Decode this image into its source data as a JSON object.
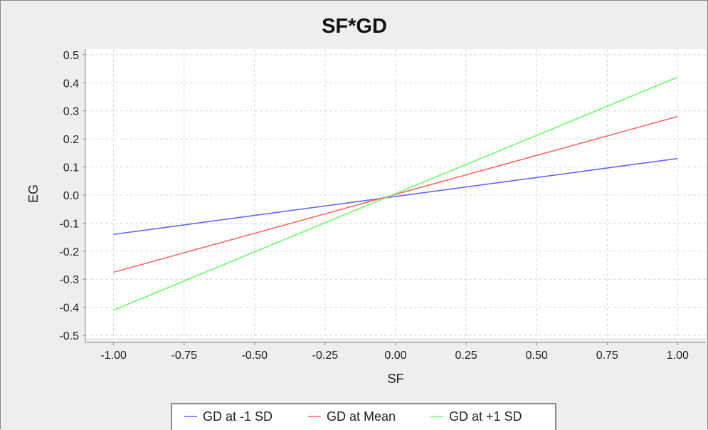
{
  "chart_data": {
    "type": "line",
    "title": "SF*GD",
    "xlabel": "SF",
    "ylabel": "EG",
    "xlim": [
      -1.1,
      1.1
    ],
    "ylim": [
      -0.51,
      0.52
    ],
    "x_ticks": [
      -1.0,
      -0.75,
      -0.5,
      -0.25,
      0.0,
      0.25,
      0.5,
      0.75,
      1.0
    ],
    "x_tick_labels": [
      "-1.00",
      "-0.75",
      "-0.50",
      "-0.25",
      "0.00",
      "0.25",
      "0.50",
      "0.75",
      "1.00"
    ],
    "y_ticks": [
      0.5,
      0.4,
      0.3,
      0.2,
      0.1,
      0.0,
      -0.1,
      -0.2,
      -0.3,
      -0.4,
      -0.5
    ],
    "y_tick_labels": [
      "0.5",
      "0.4",
      "0.3",
      "0.2",
      "0.1",
      "0.0",
      "-0.1",
      "-0.2",
      "-0.3",
      "-0.4",
      "-0.5"
    ],
    "grid": true,
    "legend_position": "bottom",
    "series": [
      {
        "name": "GD at -1 SD",
        "color": "#6666ff",
        "x": [
          -1.0,
          1.0
        ],
        "y": [
          -0.14,
          0.13
        ]
      },
      {
        "name": "GD at Mean",
        "color": "#ff6666",
        "x": [
          -1.0,
          1.0
        ],
        "y": [
          -0.275,
          0.28
        ]
      },
      {
        "name": "GD at +1 SD",
        "color": "#66ff66",
        "x": [
          -1.0,
          1.0
        ],
        "y": [
          -0.41,
          0.42
        ]
      }
    ]
  }
}
